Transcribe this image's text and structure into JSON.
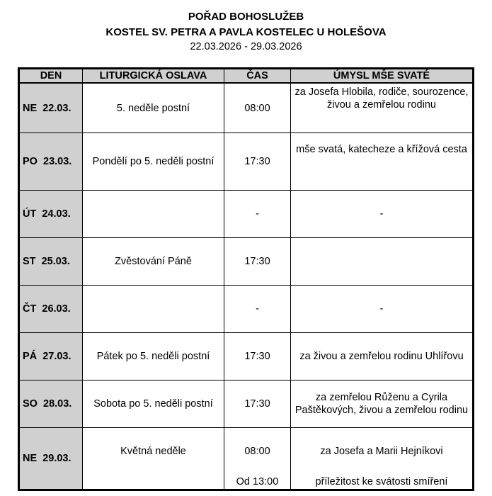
{
  "header": {
    "title": "POŘAD BOHOSLUŽEB",
    "church": "KOSTEL SV. PETRA A PAVLA KOSTELEC U HOLEŠOVA",
    "date_range": "22.03.2026 - 29.03.2026"
  },
  "columns": [
    "DEN",
    "LITURGICKÁ OSLAVA",
    "ČAS",
    "ÚMYSL MŠE SVATÉ"
  ],
  "rows": [
    {
      "day": "NE  22.03.",
      "celebration": "5. neděle postní",
      "time": "08:00",
      "intention": "za Josefa Hlobila, rodiče, sourozence, živou a zemřelou rodinu"
    },
    {
      "day": "PO  23.03.",
      "celebration": "Pondělí po 5. neděli postní",
      "time": "17:30",
      "intention": "mše svatá, katecheze a křížová cesta"
    },
    {
      "day": "ÚT  24.03.",
      "celebration": "",
      "time": "-",
      "intention": "-"
    },
    {
      "day": "ST  25.03.",
      "celebration": "Zvěstování Páně",
      "time": "17:30",
      "intention": ""
    },
    {
      "day": "ČT  26.03.",
      "celebration": "",
      "time": "-",
      "intention": "-"
    },
    {
      "day": "PÁ  27.03.",
      "celebration": "Pátek po 5. neděli postní",
      "time": "17:30",
      "intention": "za živou a zemřelou rodinu Uhlířovu"
    },
    {
      "day": "SO  28.03.",
      "celebration": "Sobota po 5. neděli postní",
      "time": "17:30",
      "intention": "za zemřelou Růženu a Cyrila Paštěkových, živou a zemřelou rodinu"
    }
  ],
  "last_row": {
    "day": "NE  29.03.",
    "celebration": "Květná neděle",
    "time1": "08:00",
    "intention1": "za Josefa a Marii Hejníkovi",
    "time2": "Od 13:00",
    "intention2": "příležitost ke svátosti smíření"
  }
}
